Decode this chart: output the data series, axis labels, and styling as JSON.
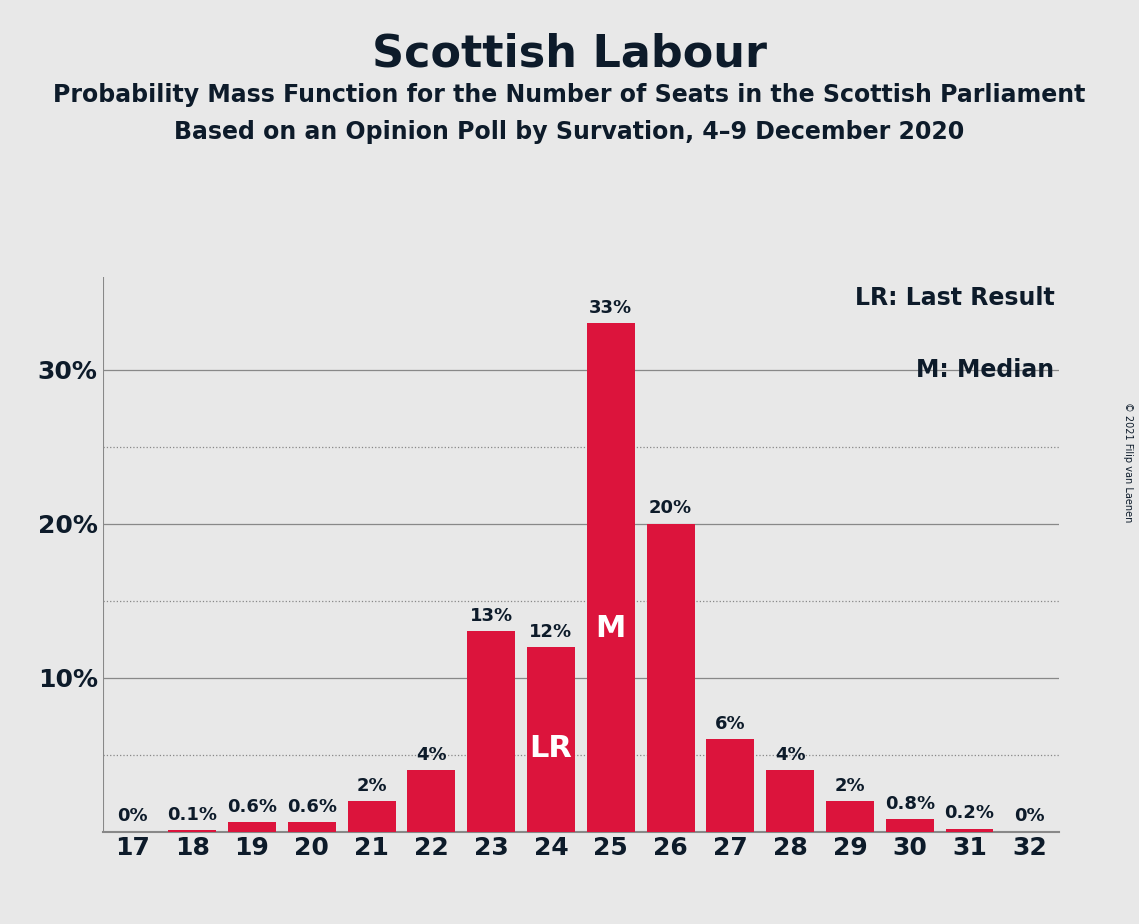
{
  "title": "Scottish Labour",
  "subtitle1": "Probability Mass Function for the Number of Seats in the Scottish Parliament",
  "subtitle2": "Based on an Opinion Poll by Survation, 4–9 December 2020",
  "copyright": "© 2021 Filip van Laenen",
  "legend_lr": "LR: Last Result",
  "legend_m": "M: Median",
  "categories": [
    17,
    18,
    19,
    20,
    21,
    22,
    23,
    24,
    25,
    26,
    27,
    28,
    29,
    30,
    31,
    32
  ],
  "values": [
    0.0,
    0.1,
    0.6,
    0.6,
    2.0,
    4.0,
    13.0,
    12.0,
    33.0,
    20.0,
    6.0,
    4.0,
    2.0,
    0.8,
    0.2,
    0.0
  ],
  "labels": [
    "0%",
    "0.1%",
    "0.6%",
    "0.6%",
    "2%",
    "4%",
    "13%",
    "12%",
    "33%",
    "20%",
    "6%",
    "4%",
    "2%",
    "0.8%",
    "0.2%",
    "0%"
  ],
  "bar_color": "#DC143C",
  "last_result_seat": 24,
  "median_seat": 25,
  "ylim": [
    0,
    36
  ],
  "solid_yticks": [
    10,
    20,
    30
  ],
  "dotted_yticks": [
    5,
    15,
    25
  ],
  "background_color": "#e8e8e8",
  "title_color": "#0d1b2a",
  "title_fontsize": 32,
  "subtitle_fontsize": 17,
  "bar_label_fontsize": 13,
  "axis_fontsize": 18,
  "legend_fontsize": 17,
  "inbar_fontsize": 22
}
